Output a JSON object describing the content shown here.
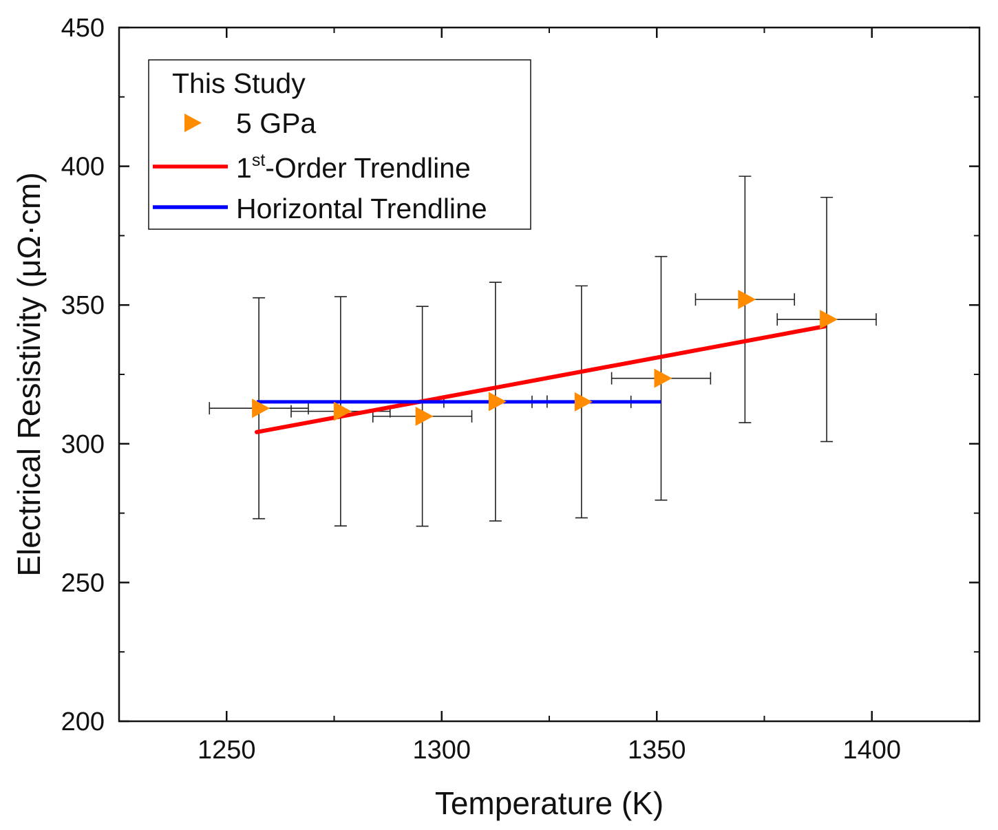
{
  "chart_data": {
    "type": "scatter",
    "title": "",
    "xlabel": "Temperature (K)",
    "ylabel": "Electrical Resistivity (μΩ·cm)",
    "xlim": [
      1225,
      1425
    ],
    "ylim": [
      200,
      450
    ],
    "xticks": [
      1250,
      1300,
      1350,
      1400
    ],
    "xtick_labels": [
      "1250",
      "1300",
      "1350",
      "1400"
    ],
    "yticks": [
      200,
      250,
      300,
      350,
      400,
      450
    ],
    "ytick_labels": [
      "200",
      "250",
      "300",
      "350",
      "400",
      "450"
    ],
    "grid": false,
    "legend": {
      "position": "top-left",
      "title": "This Study",
      "entries": [
        {
          "label": "5 GPa",
          "marker": "triangle-right",
          "color": "#ff8c00"
        },
        {
          "label_main": "1",
          "label_sup": "st",
          "label_rest": "-Order Trendline",
          "line": true,
          "color": "#ff0000"
        },
        {
          "label": "Horizontal Trendline",
          "line": true,
          "color": "#0000ff"
        }
      ]
    },
    "series": [
      {
        "name": "5 GPa",
        "marker": "triangle-right",
        "color": "#ff8c00",
        "points": [
          {
            "x": 1257.5,
            "y": 312.8,
            "xerr": 11.5,
            "yerr": 39.8
          },
          {
            "x": 1276.5,
            "y": 311.7,
            "xerr": 11.5,
            "yerr": 41.3
          },
          {
            "x": 1295.5,
            "y": 309.9,
            "xerr": 11.5,
            "yerr": 39.6
          },
          {
            "x": 1312.5,
            "y": 315.2,
            "xerr": 12.0,
            "yerr": 43.0
          },
          {
            "x": 1332.5,
            "y": 315.1,
            "xerr": 11.5,
            "yerr": 41.8
          },
          {
            "x": 1351.0,
            "y": 323.6,
            "xerr": 11.5,
            "yerr": 43.9
          },
          {
            "x": 1370.5,
            "y": 352.0,
            "xerr": 11.5,
            "yerr": 44.4
          },
          {
            "x": 1389.5,
            "y": 344.8,
            "xerr": 11.5,
            "yerr": 44.0
          }
        ]
      },
      {
        "name": "1st-Order Trendline",
        "type": "line",
        "color": "#ff0000",
        "x": [
          1257,
          1389
        ],
        "y": [
          304.2,
          342.3
        ]
      },
      {
        "name": "Horizontal Trendline",
        "type": "line",
        "color": "#0000ff",
        "x": [
          1257,
          1351
        ],
        "y": [
          315.1,
          315.1
        ]
      }
    ]
  }
}
